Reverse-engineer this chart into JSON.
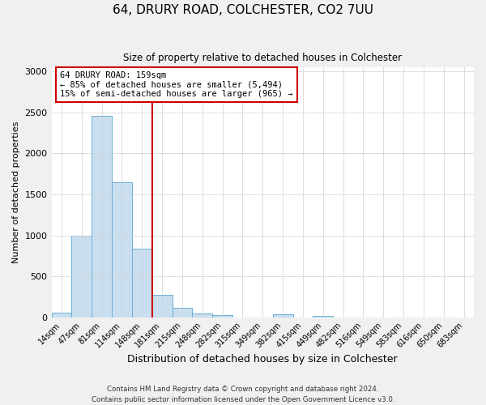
{
  "title": "64, DRURY ROAD, COLCHESTER, CO2 7UU",
  "subtitle": "Size of property relative to detached houses in Colchester",
  "xlabel": "Distribution of detached houses by size in Colchester",
  "ylabel": "Number of detached properties",
  "bar_labels": [
    "14sqm",
    "47sqm",
    "81sqm",
    "114sqm",
    "148sqm",
    "181sqm",
    "215sqm",
    "248sqm",
    "282sqm",
    "315sqm",
    "349sqm",
    "382sqm",
    "415sqm",
    "449sqm",
    "482sqm",
    "516sqm",
    "549sqm",
    "583sqm",
    "616sqm",
    "650sqm",
    "683sqm"
  ],
  "bar_values": [
    55,
    1000,
    2460,
    1650,
    840,
    270,
    120,
    50,
    30,
    0,
    0,
    35,
    0,
    15,
    0,
    0,
    0,
    0,
    0,
    0,
    0
  ],
  "bar_color": "#c9dff0",
  "bar_edge_color": "#6baed6",
  "annotation_title": "64 DRURY ROAD: 159sqm",
  "annotation_line1": "← 85% of detached houses are smaller (5,494)",
  "annotation_line2": "15% of semi-detached houses are larger (965) →",
  "vline_x_index": 4.5,
  "vline_color": "#cc0000",
  "box_color": "#cc0000",
  "ylim": [
    0,
    3050
  ],
  "yticks": [
    0,
    500,
    1000,
    1500,
    2000,
    2500,
    3000
  ],
  "footnote1": "Contains HM Land Registry data © Crown copyright and database right 2024.",
  "footnote2": "Contains public sector information licensed under the Open Government Licence v3.0.",
  "bg_color": "#f0f0f0",
  "plot_bg_color": "#ffffff",
  "grid_color": "#d0d0d0"
}
